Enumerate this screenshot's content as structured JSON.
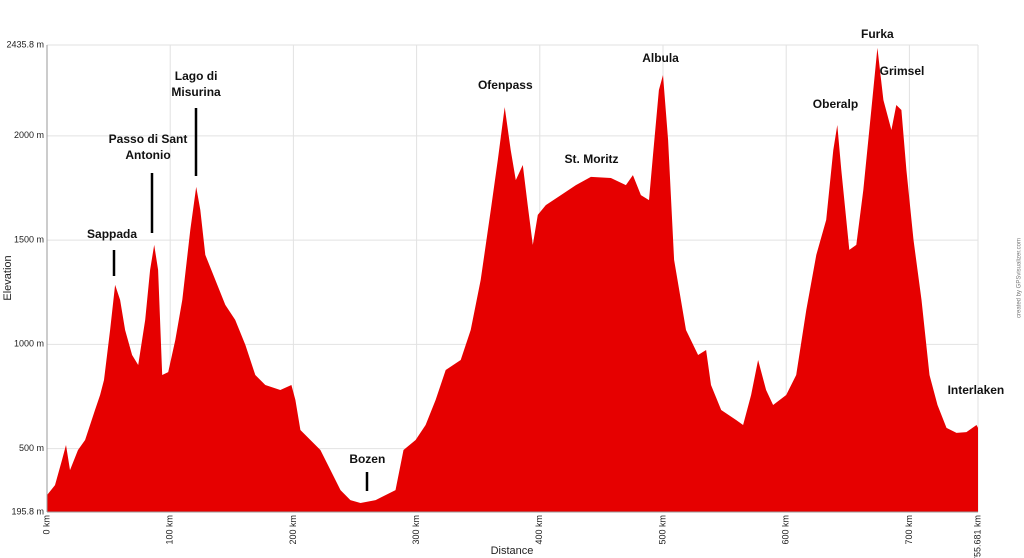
{
  "chart_data": {
    "type": "area",
    "xlabel": "Distance",
    "ylabel": "Elevation",
    "credit": "created by GPSvisualizer.com",
    "color": "#e60000",
    "grid": true,
    "xlim": [
      0,
      755.681
    ],
    "ylim": [
      195.8,
      2435.8
    ],
    "xticks": [
      {
        "value": 0,
        "label": "0 km"
      },
      {
        "value": 100,
        "label": "100 km"
      },
      {
        "value": 200,
        "label": "200 km"
      },
      {
        "value": 300,
        "label": "300 km"
      },
      {
        "value": 400,
        "label": "400 km"
      },
      {
        "value": 500,
        "label": "500 km"
      },
      {
        "value": 600,
        "label": "600 km"
      },
      {
        "value": 700,
        "label": "700 km"
      },
      {
        "value": 755.681,
        "label": "755.681 km"
      }
    ],
    "yticks": [
      {
        "value": 195.8,
        "label": "195.8 m"
      },
      {
        "value": 500,
        "label": "500 m"
      },
      {
        "value": 1000,
        "label": "1000 m"
      },
      {
        "value": 1500,
        "label": "1500 m"
      },
      {
        "value": 2000,
        "label": "2000 m"
      },
      {
        "value": 2435.8,
        "label": "2435.8 m"
      }
    ],
    "x": [
      0,
      6.5,
      12.2,
      15.4,
      18.7,
      25.2,
      30.9,
      39.0,
      43.1,
      46.3,
      51.2,
      55.3,
      59.3,
      63.4,
      69.1,
      74.0,
      79.7,
      83.7,
      87.0,
      90.2,
      93.5,
      98.4,
      104.1,
      109.8,
      116.3,
      121.1,
      124.4,
      128.5,
      136.6,
      144.7,
      152.8,
      161.0,
      169.1,
      177.2,
      189.4,
      198.4,
      201.6,
      205.7,
      213.8,
      221.9,
      230.1,
      238.2,
      246.3,
      254.5,
      266.7,
      282.9,
      289.4,
      299.2,
      307.3,
      315.4,
      323.6,
      335.8,
      343.9,
      352.0,
      360.2,
      365.9,
      371.5,
      376.4,
      380.5,
      386.2,
      390.2,
      394.3,
      398.4,
      404.9,
      417.1,
      429.3,
      441.5,
      457.7,
      469.9,
      475.6,
      482.1,
      488.6,
      491.9,
      496.7,
      500.0,
      504.1,
      509.0,
      518.7,
      528.5,
      535.0,
      539.0,
      547.2,
      559.3,
      565.0,
      571.5,
      577.2,
      583.7,
      589.4,
      600.0,
      608.1,
      616.3,
      624.4,
      632.5,
      638.2,
      641.5,
      644.7,
      651.2,
      656.9,
      662.6,
      669.1,
      674.0,
      678.9,
      685.4,
      689.4,
      693.5,
      697.6,
      703.3,
      709.8,
      716.3,
      722.8,
      730.1,
      738.2,
      746.3,
      754.5,
      755.681
    ],
    "values": [
      277,
      325,
      445,
      517,
      397,
      493,
      541,
      685,
      757,
      829,
      1069,
      1285,
      1213,
      1069,
      949,
      901,
      1117,
      1357,
      1477,
      1357,
      853,
      867,
      1021,
      1213,
      1549,
      1755,
      1645,
      1429,
      1309,
      1189,
      1117,
      997,
      853,
      805,
      781,
      805,
      733,
      589,
      541,
      493,
      397,
      301,
      253,
      239,
      253,
      301,
      493,
      541,
      613,
      733,
      877,
      925,
      1069,
      1309,
      1645,
      1884,
      2138,
      1932,
      1788,
      1860,
      1668,
      1477,
      1621,
      1668,
      1716,
      1764,
      1803,
      1798,
      1764,
      1812,
      1716,
      1692,
      1908,
      2220,
      2292,
      1980,
      1405,
      1069,
      949,
      973,
      805,
      685,
      637,
      613,
      757,
      925,
      781,
      709,
      757,
      853,
      1165,
      1429,
      1597,
      1932,
      2052,
      1836,
      1453,
      1477,
      1740,
      2124,
      2422,
      2172,
      2028,
      2148,
      2124,
      1836,
      1501,
      1213,
      853,
      709,
      599,
      575,
      579,
      613,
      599
    ],
    "annotations": [
      {
        "label": [
          "Sappada"
        ],
        "x": 52.8,
        "y": 1525
      },
      {
        "label": [
          "Passo di Sant",
          "Antonio"
        ],
        "x": 82,
        "y": 1980
      },
      {
        "label": [
          "Lago di",
          "Misurina"
        ],
        "x": 121,
        "y": 2282
      },
      {
        "label": [
          "Bozen"
        ],
        "x": 260,
        "y": 445
      },
      {
        "label": [
          "Ofenpass"
        ],
        "x": 372,
        "y": 2239
      },
      {
        "label": [
          "St. Moritz"
        ],
        "x": 442,
        "y": 1884
      },
      {
        "label": [
          "Albula"
        ],
        "x": 498,
        "y": 2369
      },
      {
        "label": [
          "Oberalp"
        ],
        "x": 640,
        "y": 2148
      },
      {
        "label": [
          "Furka"
        ],
        "x": 674,
        "y": 2484
      },
      {
        "label": [
          "Grimsel"
        ],
        "x": 694,
        "y": 2306
      },
      {
        "label": [
          "Interlaken"
        ],
        "x": 754,
        "y": 776
      }
    ]
  }
}
